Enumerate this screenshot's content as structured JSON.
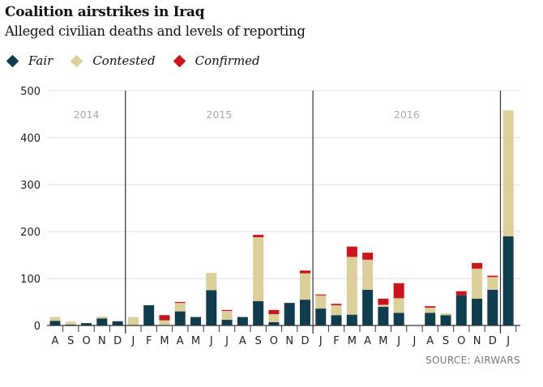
{
  "chart_data": {
    "type": "bar",
    "title": "Coalition airstrikes in Iraq",
    "subtitle": "Alleged civilian deaths and levels of reporting",
    "ylim": [
      0,
      500
    ],
    "yticks": [
      0,
      100,
      200,
      300,
      400,
      500
    ],
    "categories": [
      "A",
      "S",
      "O",
      "N",
      "D",
      "J",
      "F",
      "M",
      "A",
      "M",
      "J",
      "J",
      "A",
      "S",
      "O",
      "N",
      "D",
      "J",
      "F",
      "M",
      "A",
      "M",
      "J",
      "J",
      "A",
      "S",
      "O",
      "N",
      "D",
      "J"
    ],
    "years": [
      {
        "label": "2014",
        "start": 0,
        "end": 4
      },
      {
        "label": "2015",
        "start": 5,
        "end": 16
      },
      {
        "label": "2016",
        "start": 17,
        "end": 28
      }
    ],
    "series": [
      {
        "name": "Fair",
        "color": "#0d3d4f",
        "values": [
          10,
          2,
          5,
          15,
          9,
          0,
          43,
          1,
          30,
          18,
          75,
          12,
          18,
          52,
          7,
          48,
          55,
          36,
          22,
          23,
          76,
          40,
          27,
          0,
          27,
          22,
          64,
          57,
          76,
          190
        ]
      },
      {
        "name": "Contested",
        "color": "#dccf98",
        "values": [
          8,
          6,
          0,
          4,
          0,
          18,
          0,
          10,
          18,
          0,
          37,
          19,
          0,
          136,
          17,
          0,
          56,
          28,
          21,
          123,
          64,
          4,
          31,
          0,
          11,
          4,
          0,
          64,
          27,
          268
        ]
      },
      {
        "name": "Confirmed",
        "color": "#d0121b",
        "values": [
          0,
          0,
          0,
          0,
          0,
          0,
          0,
          11,
          2,
          0,
          0,
          2,
          0,
          5,
          9,
          0,
          6,
          2,
          3,
          22,
          15,
          13,
          32,
          0,
          3,
          0,
          9,
          12,
          3,
          0
        ]
      }
    ],
    "source": "SOURCE: AIRWARS"
  }
}
